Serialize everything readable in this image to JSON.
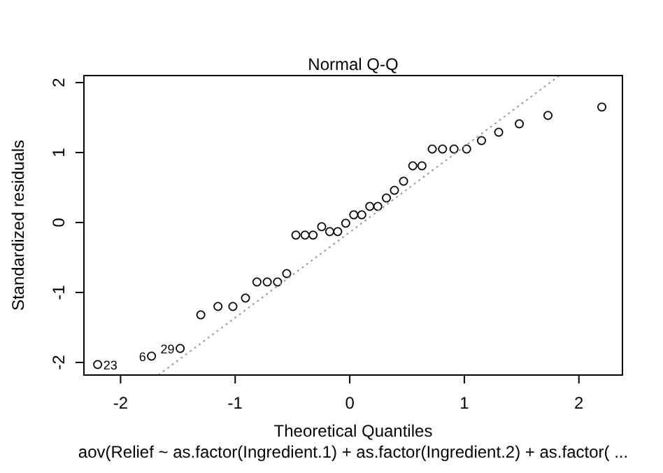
{
  "chart_data": {
    "type": "scatter",
    "title": "Normal Q-Q",
    "xlabel": "Theoretical Quantiles",
    "ylabel": "Standardized residuals",
    "subtitle": "aov(Relief ~ as.factor(Ingredient.1) + as.factor(Ingredient.2) + as.factor( ...",
    "xlim": [
      -2.32,
      2.38
    ],
    "ylim": [
      -2.18,
      2.1
    ],
    "xticks": [
      -2,
      -1,
      0,
      1,
      2
    ],
    "yticks": [
      -2,
      -1,
      0,
      1,
      2
    ],
    "series": [
      {
        "marker": "circle",
        "color": "#000000",
        "x": [
          -2.2,
          -1.73,
          -1.48,
          -1.3,
          -1.15,
          -1.02,
          -0.91,
          -0.81,
          -0.72,
          -0.63,
          -0.55,
          -0.47,
          -0.39,
          -0.32,
          -0.245,
          -0.175,
          -0.105,
          -0.035,
          0.035,
          0.105,
          0.175,
          0.245,
          0.32,
          0.39,
          0.47,
          0.55,
          0.63,
          0.72,
          0.81,
          0.91,
          1.02,
          1.15,
          1.3,
          1.48,
          1.73,
          2.2
        ],
        "values": [
          -2.03,
          -1.91,
          -1.8,
          -1.32,
          -1.2,
          -1.2,
          -1.08,
          -0.85,
          -0.85,
          -0.85,
          -0.73,
          -0.18,
          -0.18,
          -0.18,
          -0.06,
          -0.13,
          -0.13,
          -0.01,
          0.11,
          0.11,
          0.23,
          0.23,
          0.35,
          0.46,
          0.59,
          0.81,
          0.81,
          1.05,
          1.05,
          1.05,
          1.05,
          1.17,
          1.29,
          1.41,
          1.53,
          1.65
        ]
      },
      {
        "type": "line",
        "color": "#999999",
        "line_style": "dotted",
        "x": [
          -1.67,
          1.83
        ],
        "values": [
          -2.18,
          2.1
        ]
      }
    ],
    "annotations": [
      {
        "text": "23",
        "x": -2.2,
        "y": -2.03
      },
      {
        "text": "6",
        "x": -1.73,
        "y": -1.91
      },
      {
        "text": "29",
        "x": -1.48,
        "y": -1.8
      }
    ]
  }
}
